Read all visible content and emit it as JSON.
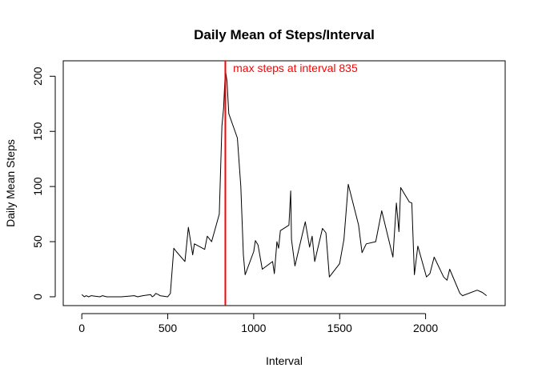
{
  "chart_data": {
    "type": "line",
    "title": "Daily Mean of Steps/Interval",
    "xlabel": "Interval",
    "ylabel": "Daily Mean Steps",
    "xlim": [
      -108,
      2463
    ],
    "ylim": [
      -8,
      214
    ],
    "xticks": [
      0,
      500,
      1000,
      1500,
      2000
    ],
    "yticks": [
      0,
      50,
      100,
      150,
      200
    ],
    "grid": false,
    "series": [
      {
        "color": "#000000",
        "x": [
          0,
          15,
          25,
          40,
          55,
          105,
          120,
          145,
          230,
          305,
          325,
          355,
          400,
          410,
          420,
          430,
          445,
          455,
          500,
          515,
          535,
          550,
          600,
          620,
          645,
          655,
          715,
          730,
          755,
          800,
          815,
          825,
          835,
          845,
          855,
          905,
          925,
          940,
          950,
          1000,
          1010,
          1025,
          1050,
          1110,
          1120,
          1135,
          1145,
          1155,
          1205,
          1215,
          1220,
          1240,
          1300,
          1325,
          1340,
          1355,
          1400,
          1420,
          1440,
          1500,
          1525,
          1550,
          1610,
          1630,
          1655,
          1710,
          1745,
          1810,
          1830,
          1845,
          1855,
          1905,
          1920,
          1935,
          1955,
          2005,
          2025,
          2050,
          2105,
          2125,
          2140,
          2200,
          2215,
          2300,
          2330,
          2355
        ],
        "y": [
          2,
          0,
          1,
          0,
          1,
          0,
          1,
          0,
          0,
          1,
          0,
          1,
          2,
          0,
          1,
          3,
          2,
          1,
          0,
          3,
          44,
          41,
          32,
          63,
          38,
          48,
          43,
          55,
          50,
          75,
          155,
          171,
          206,
          195,
          166,
          144,
          100,
          38,
          20,
          41,
          51,
          47,
          25,
          32,
          21,
          50,
          44,
          60,
          65,
          96,
          52,
          28,
          68,
          45,
          55,
          32,
          62,
          58,
          18,
          30,
          52,
          102,
          65,
          40,
          48,
          50,
          78,
          36,
          85,
          59,
          99,
          86,
          85,
          20,
          46,
          18,
          21,
          36,
          18,
          15,
          25,
          3,
          1,
          6,
          4,
          1
        ]
      }
    ],
    "vline": {
      "x": 835,
      "color": "#ff0000"
    },
    "annotation": {
      "text": "max steps at interval 835",
      "x": 880,
      "y": 204,
      "color": "#ff0000"
    }
  }
}
